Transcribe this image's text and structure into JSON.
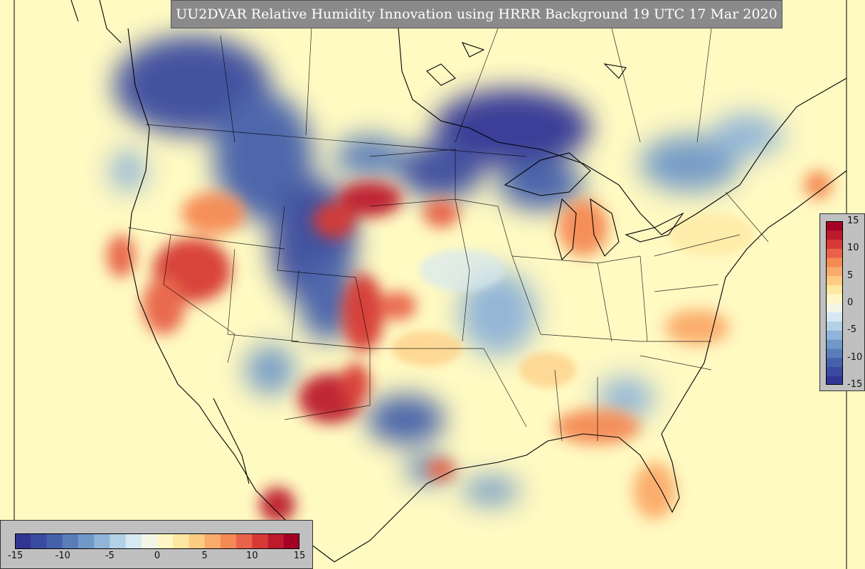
{
  "title": "UU2DVAR Relative Humidity Innovation using HRRR Background 19 UTC 17 Mar 2020",
  "colorbar": {
    "min": -15,
    "max": 15,
    "tick_labels": [
      "-15",
      "-10",
      "-5",
      "0",
      "5",
      "10",
      "15"
    ],
    "colors": [
      "#313695",
      "#3a4b9f",
      "#4561aa",
      "#5a7db9",
      "#7199c8",
      "#8fb4d8",
      "#b3d1e6",
      "#d6e8f1",
      "#f3f6e6",
      "#fff8c6",
      "#fee7a0",
      "#fdcc83",
      "#fbab6b",
      "#f58a55",
      "#e8634a",
      "#d73a36",
      "#bd1a2d",
      "#a50026"
    ]
  },
  "colors": {
    "background_field": "#fff9c2",
    "land_lines": "#000000",
    "title_bg": "#8a8a8a",
    "panel_bg": "#c0c0c0"
  }
}
